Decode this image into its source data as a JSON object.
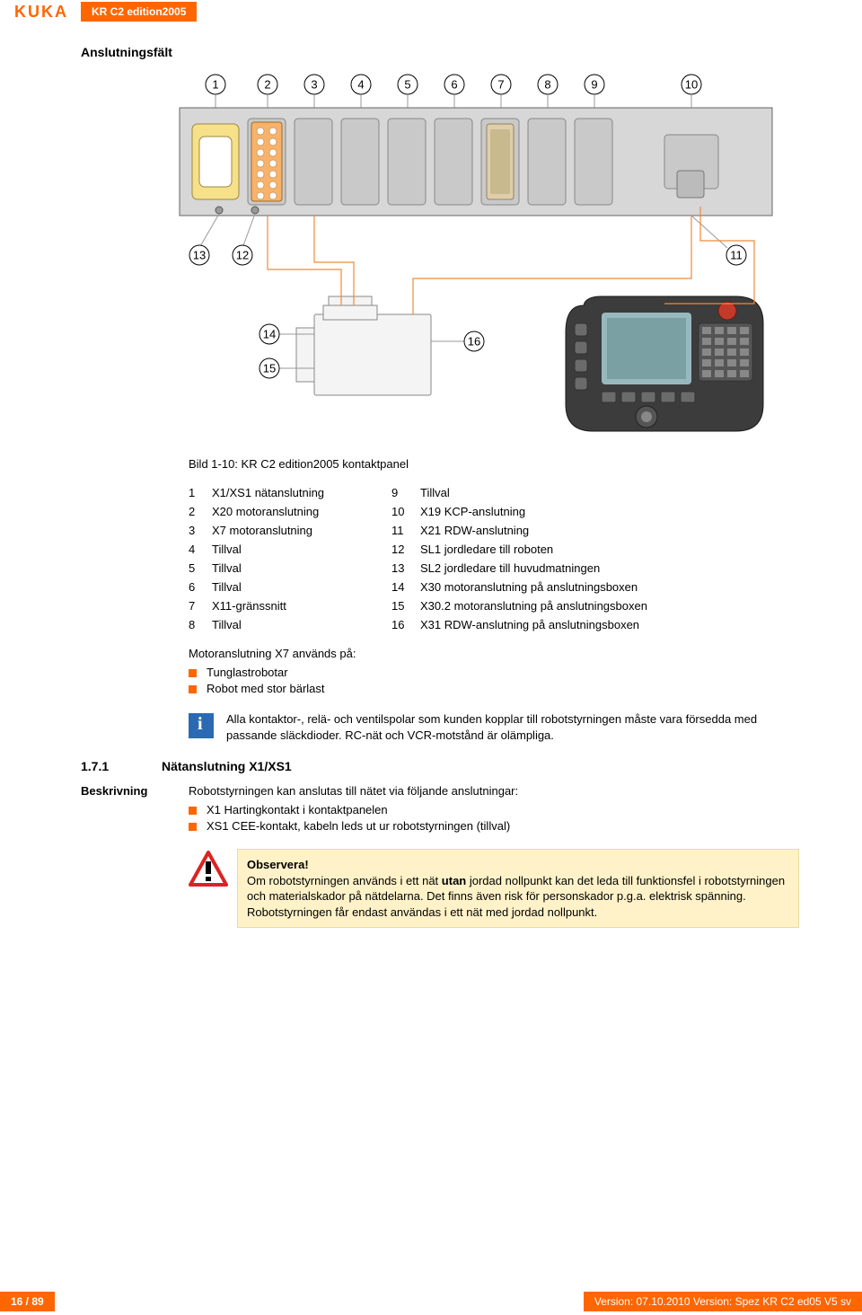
{
  "header": {
    "logo": "KUKA",
    "doc_title": "KR C2 edition2005"
  },
  "section_title": "Anslutningsfält",
  "figure": {
    "caption": "Bild 1-10: KR C2 edition2005 kontaktpanel",
    "callouts_top": [
      "1",
      "2",
      "3",
      "4",
      "5",
      "6",
      "7",
      "8",
      "9",
      "10"
    ],
    "callouts_bottom_left": [
      "13",
      "12"
    ],
    "callouts_bottom_right": [
      "11"
    ],
    "callouts_motor": [
      "14",
      "15",
      "16"
    ]
  },
  "legend": [
    {
      "n": "1",
      "l": "X1/XS1 nätanslutning",
      "n2": "9",
      "r": "Tillval"
    },
    {
      "n": "2",
      "l": "X20 motoranslutning",
      "n2": "10",
      "r": "X19 KCP-anslutning"
    },
    {
      "n": "3",
      "l": "X7 motoranslutning",
      "n2": "11",
      "r": "X21 RDW-anslutning"
    },
    {
      "n": "4",
      "l": "Tillval",
      "n2": "12",
      "r": "SL1 jordledare till roboten"
    },
    {
      "n": "5",
      "l": "Tillval",
      "n2": "13",
      "r": "SL2 jordledare till huvudmatningen"
    },
    {
      "n": "6",
      "l": "Tillval",
      "n2": "14",
      "r": "X30 motoranslutning på anslutningsboxen"
    },
    {
      "n": "7",
      "l": "X11-gränssnitt",
      "n2": "15",
      "r": "X30.2 motoranslutning på anslutningsboxen"
    },
    {
      "n": "8",
      "l": "Tillval",
      "n2": "16",
      "r": "X31 RDW-anslutning på anslutningsboxen"
    }
  ],
  "motor_note": "Motoranslutning X7 används på:",
  "motor_bullets": [
    "Tunglastrobotar",
    "Robot med stor bärlast"
  ],
  "info_text": "Alla kontaktor-, relä- och ventilspolar som kunden kopplar till robotstyrningen måste vara försedda med passande släckdioder. RC-nät och VCR-motstånd är olämpliga.",
  "subsection": {
    "num": "1.7.1",
    "title": "Nätanslutning X1/XS1"
  },
  "beskrivning": {
    "label": "Beskrivning",
    "intro": "Robotstyrningen kan anslutas till nätet via följande anslutningar:",
    "bullets": [
      "X1 Hartingkontakt i kontaktpanelen",
      "XS1 CEE-kontakt, kabeln leds ut ur robotstyrningen (tillval)"
    ]
  },
  "warning": {
    "title": "Observera!",
    "text_before": "Om robotstyrningen används i ett nät ",
    "bold_word": "utan",
    "text_after": " jordad nollpunkt kan det leda till funktionsfel i robotstyrningen och materialskador på nätdelarna. Det finns även risk för personskador p.g.a. elektrisk spänning. Robotstyrningen får endast användas i ett nät med jordad nollpunkt."
  },
  "footer": {
    "page": "16 / 89",
    "version": "Version: 07.10.2010 Version: Spez KR C2 ed05 V5 sv"
  }
}
